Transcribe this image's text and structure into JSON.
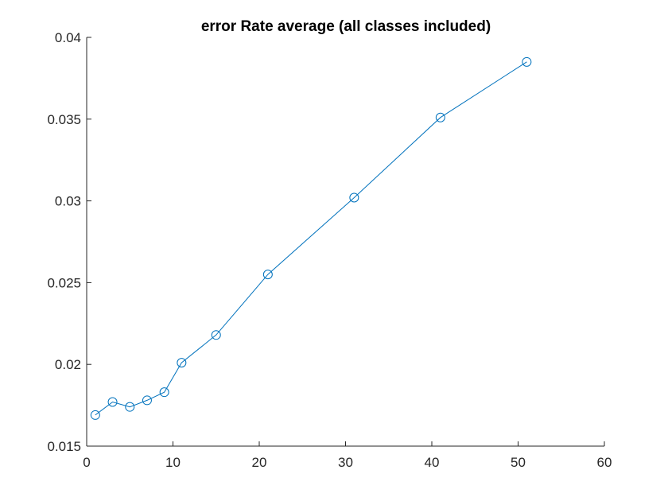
{
  "chart_data": {
    "type": "line",
    "title": "error Rate average (all classes included)",
    "xlabel": "",
    "ylabel": "",
    "xlim": [
      0,
      60
    ],
    "ylim": [
      0.015,
      0.04
    ],
    "x_ticks": [
      0,
      10,
      20,
      30,
      40,
      50,
      60
    ],
    "x_tick_labels": [
      "0",
      "10",
      "20",
      "30",
      "40",
      "50",
      "60"
    ],
    "y_ticks": [
      0.015,
      0.02,
      0.025,
      0.03,
      0.035,
      0.04
    ],
    "y_tick_labels": [
      "0.015",
      "0.02",
      "0.025",
      "0.03",
      "0.035",
      "0.04"
    ],
    "grid": false,
    "legend": "none",
    "marker": "circle",
    "series": [
      {
        "color": "#0072bd",
        "x": [
          1,
          3,
          5,
          7,
          9,
          11,
          15,
          21,
          31,
          41,
          51
        ],
        "y": [
          0.0169,
          0.0177,
          0.0174,
          0.0178,
          0.0183,
          0.0201,
          0.0218,
          0.0255,
          0.0302,
          0.0351,
          0.0385
        ]
      }
    ]
  }
}
